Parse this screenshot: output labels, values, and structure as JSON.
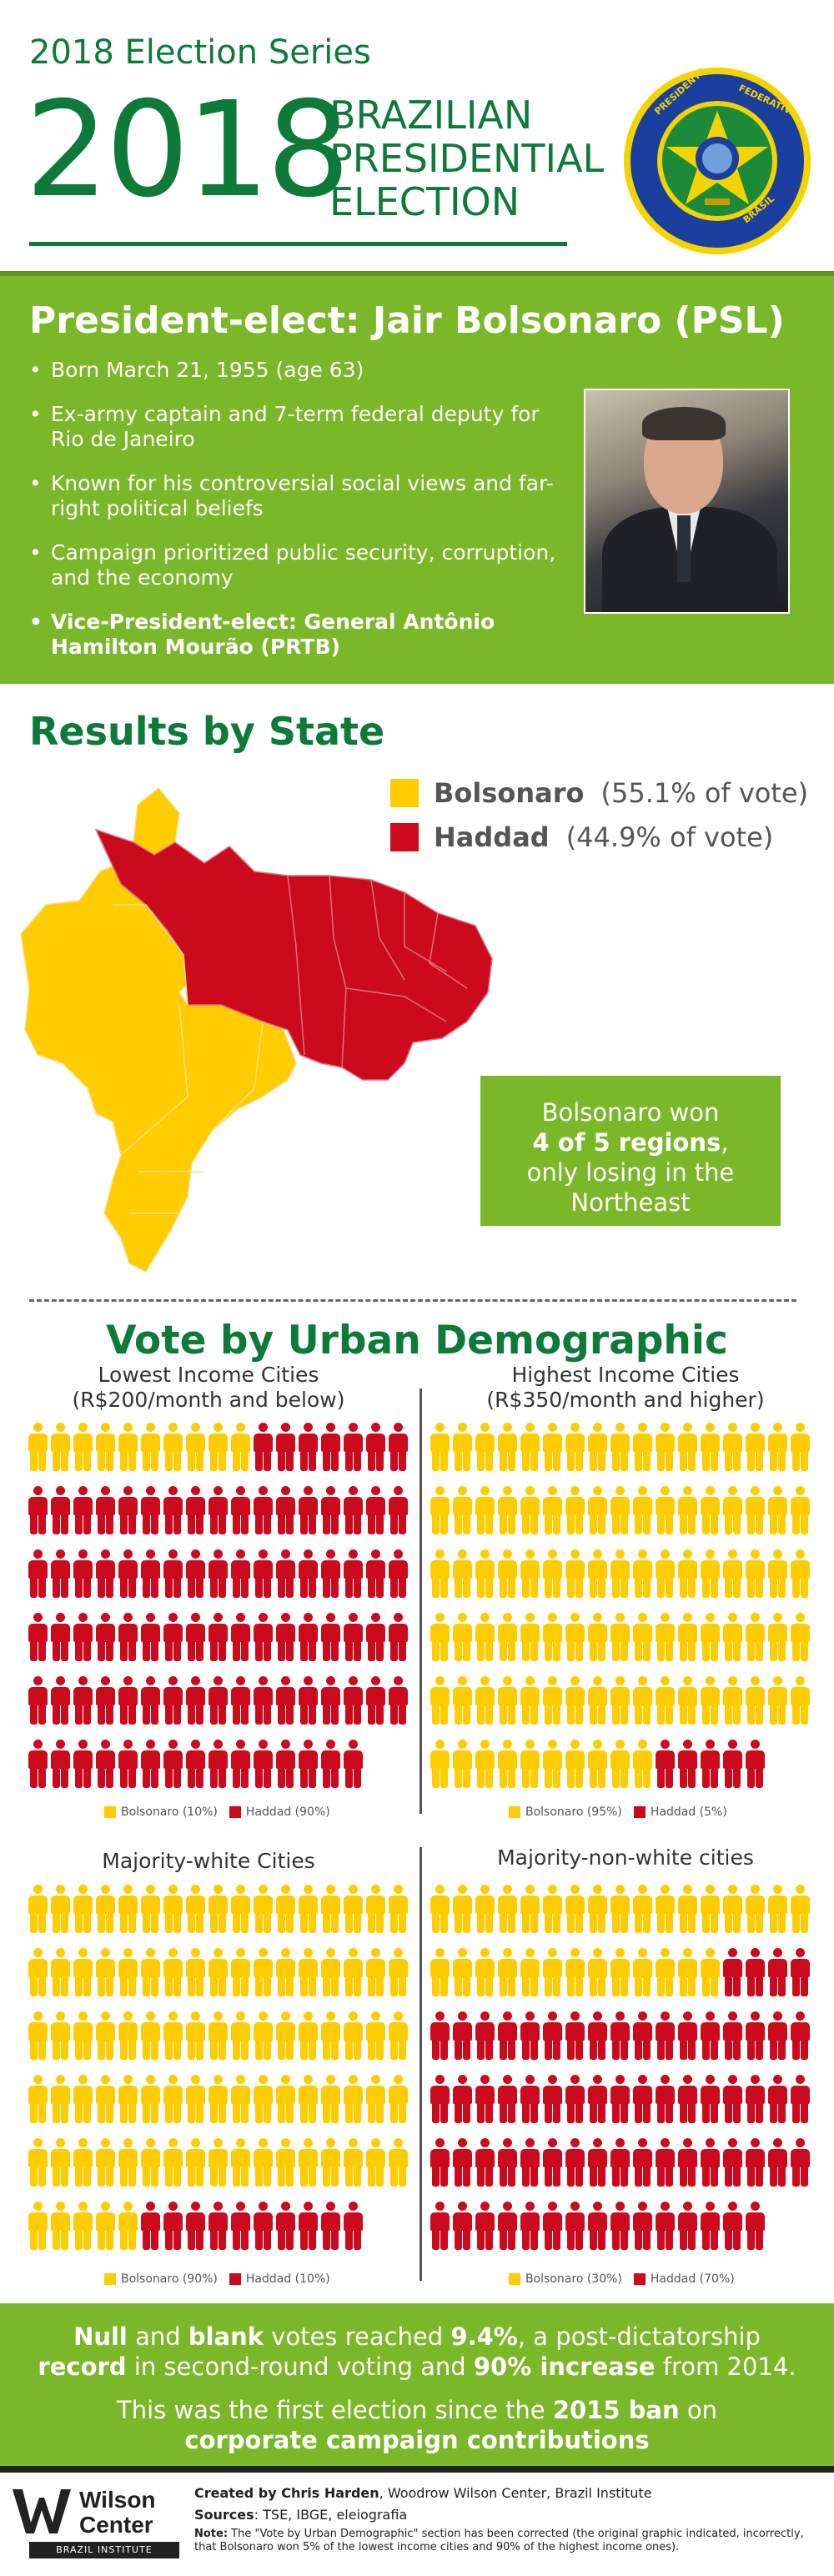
{
  "header": {
    "series": "2018 Election Series",
    "year": "2018",
    "title_line1": "BRAZILIAN",
    "title_line2": "PRESIDENTIAL",
    "title_line3": "ELECTION",
    "seal_icon": "presidential-seal-icon"
  },
  "president": {
    "title": "President-elect: Jair Bolsonaro (PSL)",
    "bullets": [
      "Born March 21, 1955 (age 63)",
      "Ex-army captain and 7-term federal deputy for Rio de Janeiro",
      "Known for his controversial social views and far-right political beliefs",
      "Campaign prioritized public security, corruption, and the economy",
      "Vice-President-elect: General Antônio Hamilton Mourão (PRTB)"
    ],
    "photo_icon": "portrait-photo"
  },
  "results": {
    "title": "Results by State",
    "legend": [
      {
        "name": "Bolsonaro",
        "pct": "(55.1% of vote)",
        "color": "#ffcc00"
      },
      {
        "name": "Haddad",
        "pct": "(44.9% of vote)",
        "color": "#cc0a1e"
      }
    ],
    "regions_line1": "Bolsonaro won",
    "regions_bold": "4 of 5 regions",
    "regions_comma": ",",
    "regions_line3": "only losing in the",
    "regions_line4": "Northeast"
  },
  "demographics": {
    "title": "Vote by Urban Demographic",
    "panels": [
      {
        "title1": "Lowest Income Cities",
        "title2": "(R$200/month and below)",
        "legend_b": "Bolsonaro (10%)",
        "legend_h": "Haddad (90%)",
        "bolsonaro_pct": 10,
        "haddad_pct": 90
      },
      {
        "title1": "Highest Income Cities",
        "title2": "(R$350/month and higher)",
        "legend_b": "Bolsonaro (95%)",
        "legend_h": "Haddad (5%)",
        "bolsonaro_pct": 95,
        "haddad_pct": 5
      },
      {
        "title1": "Majority-white Cities",
        "title2": "",
        "legend_b": "Bolsonaro (90%)",
        "legend_h": "Haddad (10%)",
        "bolsonaro_pct": 90,
        "haddad_pct": 10
      },
      {
        "title1": "Majority-non-white cities",
        "title2": "",
        "legend_b": "Bolsonaro (30%)",
        "legend_h": "Haddad (70%)",
        "bolsonaro_pct": 30,
        "haddad_pct": 70
      }
    ],
    "colors": {
      "bolsonaro": "#ffcc00",
      "haddad": "#cc0a1e"
    }
  },
  "bottom": {
    "null_bold": "Null",
    "and": " and ",
    "blank_bold": "blank",
    "reached": " votes reached ",
    "pct_bold": "9.4%",
    "post": ", a post-dictatorship",
    "record_bold": "record",
    "second": " in second-round voting and ",
    "increase_bold": "90% increase",
    "from": " from 2014.",
    "first": "This was the first election since the ",
    "ban_bold": "2015 ban",
    "on": " on",
    "corp_bold": "corporate campaign contributions"
  },
  "footer": {
    "logo_line1": "Wilson",
    "logo_line2": "Center",
    "logo_sub": "BRAZIL INSTITUTE",
    "created_label": "Created by ",
    "created_name": "Chris Harden",
    "created_rest": ", Woodrow Wilson Center, Brazil Institute",
    "sources_label": "Sources",
    "sources_rest": ": TSE, IBGE, eleiografia",
    "note_label": "Note:",
    "note_rest": " The \"Vote by Urban Demographic\" section has been corrected (the original graphic indicated, incorrectly, that Bolsonaro won 5% of the lowest income cities and 90% of the highest income ones)."
  }
}
